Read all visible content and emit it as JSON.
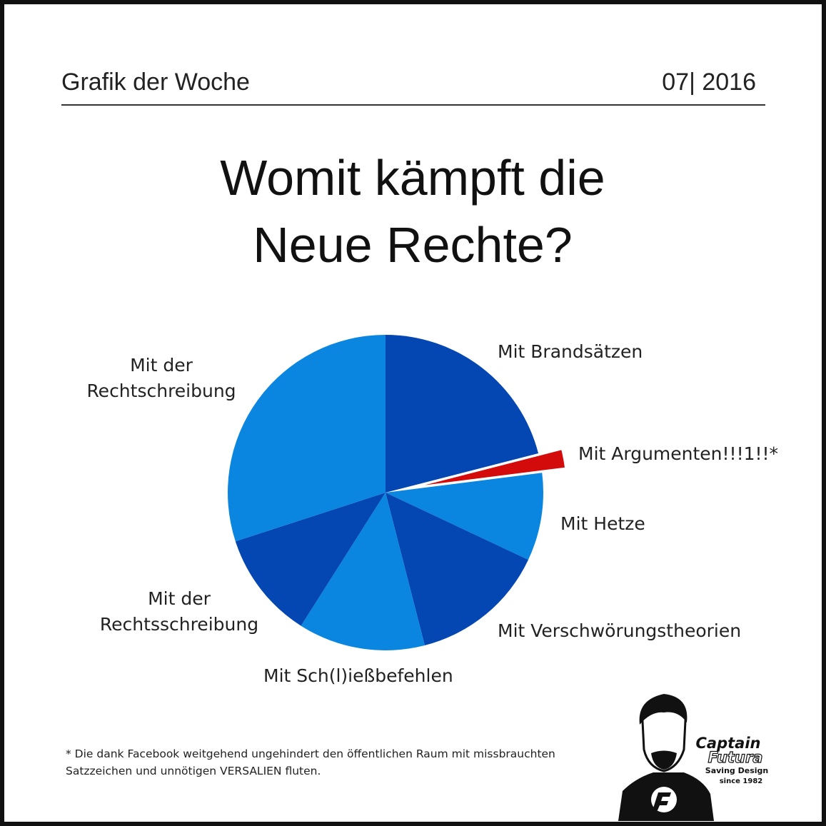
{
  "header": {
    "left": "Grafik der Woche",
    "right": "07| 2016"
  },
  "chart_data": {
    "type": "pie",
    "title": "Womit kämpft die Neue Rechte?",
    "categories": [
      "Mit Brandsätzen",
      "Mit Argumenten!!!1!!*",
      "Mit Hetze",
      "Mit Verschwörungstheorien",
      "Mit Sch(l)ießbefehlen",
      "Mit der Rechtsschreibung",
      "Mit der Rechtschreibung"
    ],
    "values": [
      21,
      2,
      9,
      14,
      13,
      11,
      30
    ],
    "colors": [
      "#0447b3",
      "#d40b0b",
      "#0a86e0",
      "#0447b3",
      "#0a86e0",
      "#0447b3",
      "#0a86e0"
    ],
    "exploded": [
      1
    ]
  },
  "footnote": "* Die dank Facebook weitgehend ungehindert den öffentlichen Raum mit missbrauchten Satzzeichen und unnötigen VERSALIEN fluten.",
  "logo": {
    "name1": "Captain",
    "name2": "Futura",
    "tagline": "Saving Design",
    "since": "since 1982"
  }
}
